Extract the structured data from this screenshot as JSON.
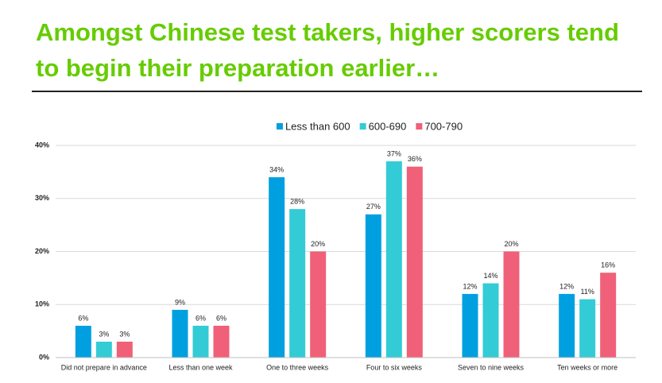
{
  "chart_data": {
    "type": "bar",
    "title": "Amongst Chinese test takers, higher scorers tend to begin their preparation earlier…",
    "categories": [
      "Did not prepare in advance",
      "Less than one week",
      "One to three weeks",
      "Four to six weeks",
      "Seven to nine weeks",
      "Ten weeks or more"
    ],
    "series": [
      {
        "name": "Less than 600",
        "color": "#00a0e0",
        "values": [
          6,
          9,
          34,
          27,
          12,
          12
        ],
        "value_labels": [
          "6%",
          "9%",
          "34%",
          "27%",
          "12%",
          "12%"
        ]
      },
      {
        "name": "600-690",
        "color": "#33ccd6",
        "values": [
          3,
          6,
          28,
          37,
          14,
          11
        ],
        "value_labels": [
          "3%",
          "6%",
          "28%",
          "37%",
          "14%",
          "11%"
        ]
      },
      {
        "name": "700-790",
        "color": "#f06078",
        "values": [
          3,
          6,
          20,
          36,
          20,
          16
        ],
        "value_labels": [
          "3%",
          "6%",
          "20%",
          "36%",
          "20%",
          "16%"
        ]
      }
    ],
    "ylim": [
      0,
      40
    ],
    "yticks": [
      {
        "value": 0,
        "label": "0%"
      },
      {
        "value": 10,
        "label": "10%"
      },
      {
        "value": 20,
        "label": "20%"
      },
      {
        "value": 30,
        "label": "30%"
      },
      {
        "value": 40,
        "label": "40%"
      }
    ],
    "grid": true,
    "legend": "top"
  }
}
